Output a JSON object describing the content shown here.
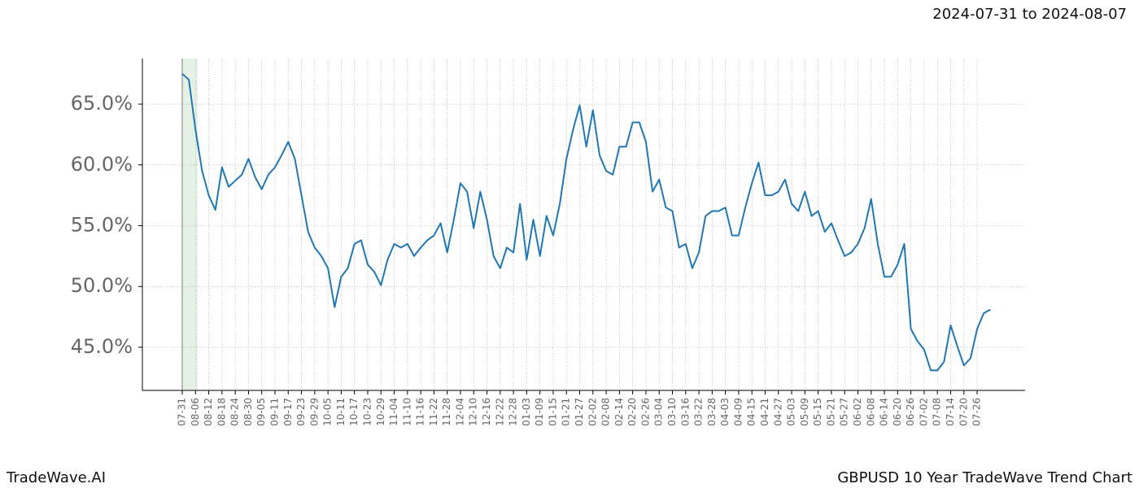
{
  "header": {
    "date_range": "2024-07-31 to 2024-08-07"
  },
  "footer": {
    "left": "TradeWave.AI",
    "right": "GBPUSD 10 Year TradeWave Trend Chart"
  },
  "chart_data": {
    "type": "line",
    "color": "#1f77b4",
    "grid": true,
    "ylim": [
      41.45,
      68.75
    ],
    "yticks": [
      {
        "value": 45,
        "label": "45.0%"
      },
      {
        "value": 50,
        "label": "50.0%"
      },
      {
        "value": 55,
        "label": "55.0%"
      },
      {
        "value": 60,
        "label": "60.0%"
      },
      {
        "value": 65,
        "label": "65.0%"
      }
    ],
    "categories": [
      "07-31",
      null,
      "08-06",
      null,
      "08-12",
      null,
      "08-18",
      null,
      "08-24",
      null,
      "08-30",
      null,
      "09-05",
      null,
      "09-11",
      null,
      "09-17",
      null,
      "09-23",
      null,
      "09-29",
      null,
      "10-05",
      null,
      "10-11",
      null,
      "10-17",
      null,
      "10-23",
      null,
      "10-29",
      null,
      "11-04",
      null,
      "11-10",
      null,
      "11-16",
      null,
      "11-22",
      null,
      "11-28",
      null,
      "12-04",
      null,
      "12-10",
      null,
      "12-16",
      null,
      "12-22",
      null,
      "12-28",
      null,
      "01-03",
      null,
      "01-09",
      null,
      "01-15",
      null,
      "01-21",
      null,
      "01-27",
      null,
      "02-02",
      null,
      "02-08",
      null,
      "02-14",
      null,
      "02-20",
      null,
      "02-26",
      null,
      "03-04",
      null,
      "03-10",
      null,
      "03-16",
      null,
      "03-22",
      null,
      "03-28",
      null,
      "04-03",
      null,
      "04-09",
      null,
      "04-15",
      null,
      "04-21",
      null,
      "04-27",
      null,
      "05-03",
      null,
      "05-09",
      null,
      "05-15",
      null,
      "05-21",
      null,
      "05-27",
      null,
      "06-02",
      null,
      "06-08",
      null,
      "06-14",
      null,
      "06-20",
      null,
      "06-26",
      null,
      "07-02",
      null,
      "07-08",
      null,
      "07-14",
      null,
      "07-20",
      null,
      "07-26",
      null,
      null
    ],
    "values": [
      67.5,
      67.0,
      62.9,
      59.5,
      57.5,
      56.3,
      59.8,
      58.2,
      58.7,
      59.2,
      60.5,
      59.0,
      58.0,
      59.2,
      59.8,
      60.8,
      61.9,
      60.5,
      57.5,
      54.5,
      53.2,
      52.5,
      51.5,
      48.3,
      50.8,
      51.5,
      53.5,
      53.8,
      51.8,
      51.2,
      50.1,
      52.2,
      53.5,
      53.2,
      53.5,
      52.5,
      53.2,
      53.8,
      54.2,
      55.2,
      52.8,
      55.5,
      58.5,
      57.8,
      54.8,
      57.8,
      55.5,
      52.5,
      51.5,
      53.2,
      52.8,
      56.8,
      52.2,
      55.5,
      52.5,
      55.8,
      54.2,
      56.8,
      60.5,
      62.9,
      64.9,
      61.5,
      64.5,
      60.8,
      59.5,
      59.2,
      61.5,
      61.5,
      63.5,
      63.5,
      61.9,
      57.8,
      58.8,
      56.5,
      56.2,
      53.2,
      53.5,
      51.5,
      52.8,
      55.8,
      56.2,
      56.2,
      56.5,
      54.2,
      54.2,
      56.5,
      58.5,
      60.2,
      57.5,
      57.5,
      57.8,
      58.8,
      56.8,
      56.2,
      57.8,
      55.8,
      56.2,
      54.5,
      55.2,
      53.8,
      52.5,
      52.8,
      53.5,
      54.8,
      57.2,
      53.5,
      50.8,
      50.8,
      51.8,
      53.5,
      46.5,
      45.5,
      44.8,
      43.1,
      43.1,
      43.8,
      46.8,
      45.1,
      43.5,
      44.1,
      46.5,
      47.8,
      48.1
    ]
  }
}
